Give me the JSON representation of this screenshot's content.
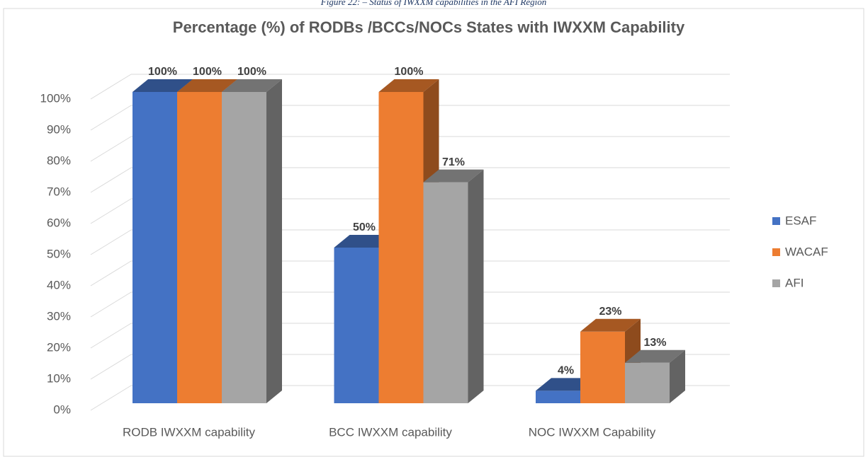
{
  "chart_data": {
    "type": "bar3d",
    "caption": "Figure 22: – Status of IWXXM capabilities in the AFI Region",
    "title": "Percentage (%) of RODBs /BCCs/NOCs States with IWXXM Capability",
    "categories": [
      "RODB IWXXM capability",
      "BCC IWXXM capability",
      "NOC IWXXM Capability"
    ],
    "series": [
      {
        "name": "ESAF",
        "color": "#4472c4",
        "values": [
          100,
          50,
          4
        ],
        "value_labels": [
          "100%",
          "50%",
          "4%"
        ]
      },
      {
        "name": "WACAF",
        "color": "#ed7d31",
        "values": [
          100,
          100,
          23
        ],
        "value_labels": [
          "100%",
          "100%",
          "23%"
        ]
      },
      {
        "name": "AFI",
        "color": "#a5a5a5",
        "values": [
          100,
          71,
          13
        ],
        "value_labels": [
          "100%",
          "71%",
          "13%"
        ]
      }
    ],
    "ylim": [
      0,
      100
    ],
    "yticks": [
      {
        "value": 0,
        "label": "0%"
      },
      {
        "value": 10,
        "label": "10%"
      },
      {
        "value": 20,
        "label": "20%"
      },
      {
        "value": 30,
        "label": "30%"
      },
      {
        "value": 40,
        "label": "40%"
      },
      {
        "value": 50,
        "label": "50%"
      },
      {
        "value": 60,
        "label": "60%"
      },
      {
        "value": 70,
        "label": "70%"
      },
      {
        "value": 80,
        "label": "80%"
      },
      {
        "value": 90,
        "label": "90%"
      },
      {
        "value": 100,
        "label": "100%"
      }
    ],
    "grid": true,
    "legend": "right"
  }
}
